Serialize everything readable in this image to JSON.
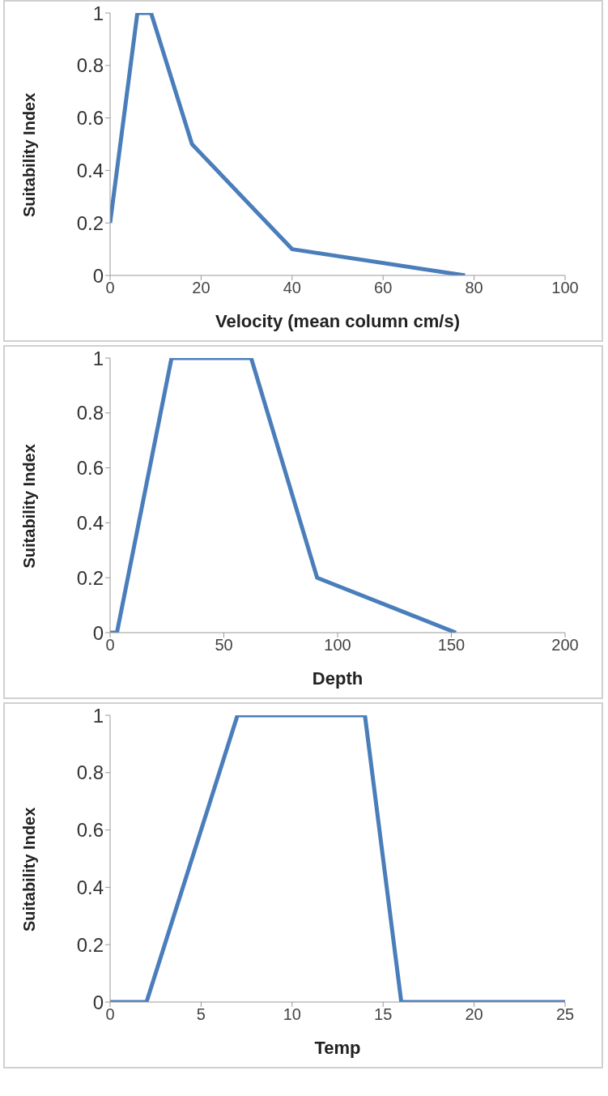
{
  "chart_data": [
    {
      "type": "line",
      "xlabel": "Velocity (mean column cm/s)",
      "ylabel": "Suitability Index",
      "x": [
        0,
        6,
        9,
        18,
        40,
        78
      ],
      "series": [
        {
          "color": "#4a7ebb",
          "values": [
            0.2,
            1,
            1,
            0.5,
            0.1,
            0
          ]
        }
      ],
      "xlim": [
        0,
        100
      ],
      "xticks": [
        0,
        20,
        40,
        60,
        80,
        100
      ],
      "ylim": [
        0,
        1
      ],
      "yticks": [
        0,
        0.2,
        0.4,
        0.6,
        0.8,
        1
      ],
      "grid": false,
      "legend": false,
      "marker": "none"
    },
    {
      "type": "line",
      "xlabel": "Depth",
      "ylabel": "Suitability Index",
      "x": [
        0,
        3,
        27,
        62,
        91,
        152
      ],
      "series": [
        {
          "color": "#4a7ebb",
          "values": [
            0,
            0,
            1,
            1,
            0.2,
            0
          ]
        }
      ],
      "xlim": [
        0,
        200
      ],
      "xticks": [
        0,
        50,
        100,
        150,
        200
      ],
      "ylim": [
        0,
        1
      ],
      "yticks": [
        0,
        0.2,
        0.4,
        0.6,
        0.8,
        1
      ],
      "grid": false,
      "legend": false,
      "marker": "none"
    },
    {
      "type": "line",
      "xlabel": "Temp",
      "ylabel": "Suitability Index",
      "x": [
        0,
        2,
        7,
        14,
        16,
        25
      ],
      "series": [
        {
          "color": "#4a7ebb",
          "values": [
            0,
            0,
            1,
            1,
            0,
            0
          ]
        }
      ],
      "xlim": [
        0,
        25
      ],
      "xticks": [
        0,
        5,
        10,
        15,
        20,
        25
      ],
      "ylim": [
        0,
        1
      ],
      "yticks": [
        0,
        0.2,
        0.4,
        0.6,
        0.8,
        1
      ],
      "grid": false,
      "legend": false,
      "marker": "none"
    }
  ]
}
